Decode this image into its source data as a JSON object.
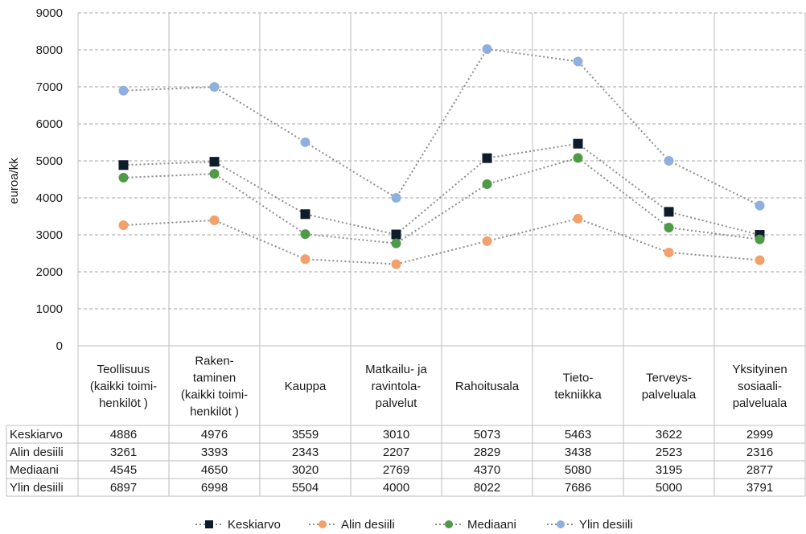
{
  "chart_data": {
    "type": "line",
    "ylabel": "euroa/kk",
    "ylim": [
      0,
      9000
    ],
    "yticks": [
      "0",
      "1000",
      "2000",
      "3000",
      "4000",
      "5000",
      "6000",
      "7000",
      "8000",
      "9000"
    ],
    "grid": true,
    "legend_position": "bottom",
    "categories": [
      [
        "Teollisuus",
        "(kaikki toimi-",
        "henkilöt )"
      ],
      [
        "Raken-",
        "taminen",
        "(kaikki toimi-",
        "henkilöt )"
      ],
      [
        "Kauppa"
      ],
      [
        "Matkailu- ja",
        "ravintola-",
        "palvelut"
      ],
      [
        "Rahoitusala"
      ],
      [
        "Tieto-",
        "tekniikka"
      ],
      [
        "Terveys-",
        "palveluala"
      ],
      [
        "Yksityinen",
        "sosiaali-",
        "palveluala"
      ]
    ],
    "series": [
      {
        "name": "Keskiarvo",
        "marker": "square",
        "color": "#0d1b2a",
        "values": [
          4886,
          4976,
          3559,
          3010,
          5073,
          5463,
          3622,
          2999
        ]
      },
      {
        "name": "Alin desiili",
        "marker": "circle",
        "color": "#f4a06b",
        "values": [
          3261,
          3393,
          2343,
          2207,
          2829,
          3438,
          2523,
          2316
        ]
      },
      {
        "name": "Mediaani",
        "marker": "circle",
        "color": "#4e9a46",
        "values": [
          4545,
          4650,
          3020,
          2769,
          4370,
          5080,
          3195,
          2877
        ]
      },
      {
        "name": "Ylin desiili",
        "marker": "circle",
        "color": "#8fb0de",
        "values": [
          6897,
          6998,
          5504,
          4000,
          8022,
          7686,
          5000,
          3791
        ]
      }
    ]
  }
}
